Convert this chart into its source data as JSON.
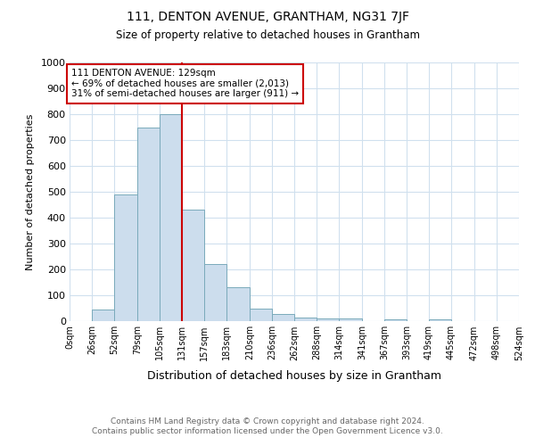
{
  "title": "111, DENTON AVENUE, GRANTHAM, NG31 7JF",
  "subtitle": "Size of property relative to detached houses in Grantham",
  "xlabel": "Distribution of detached houses by size in Grantham",
  "ylabel": "Number of detached properties",
  "footer_line1": "Contains HM Land Registry data © Crown copyright and database right 2024.",
  "footer_line2": "Contains public sector information licensed under the Open Government Licence v3.0.",
  "bin_edges": [
    0,
    26,
    52,
    79,
    105,
    131,
    157,
    183,
    210,
    236,
    262,
    288,
    314,
    341,
    367,
    393,
    419,
    445,
    472,
    498,
    524
  ],
  "bin_labels": [
    "0sqm",
    "26sqm",
    "52sqm",
    "79sqm",
    "105sqm",
    "131sqm",
    "157sqm",
    "183sqm",
    "210sqm",
    "236sqm",
    "262sqm",
    "288sqm",
    "314sqm",
    "341sqm",
    "367sqm",
    "393sqm",
    "419sqm",
    "445sqm",
    "472sqm",
    "498sqm",
    "524sqm"
  ],
  "counts": [
    0,
    45,
    490,
    750,
    800,
    430,
    220,
    130,
    50,
    28,
    15,
    10,
    10,
    0,
    8,
    0,
    8,
    0,
    0,
    0
  ],
  "bar_color": "#ccdded",
  "bar_edge_color": "#7aaabb",
  "vline_x": 131,
  "vline_color": "#cc0000",
  "annotation_text_line1": "111 DENTON AVENUE: 129sqm",
  "annotation_text_line2": "← 69% of detached houses are smaller (2,013)",
  "annotation_text_line3": "31% of semi-detached houses are larger (911) →",
  "annotation_box_color": "white",
  "annotation_box_edge_color": "#cc0000",
  "ylim": [
    0,
    1000
  ],
  "yticks": [
    0,
    100,
    200,
    300,
    400,
    500,
    600,
    700,
    800,
    900,
    1000
  ],
  "grid_color": "#d0e0ee",
  "background_color": "white"
}
